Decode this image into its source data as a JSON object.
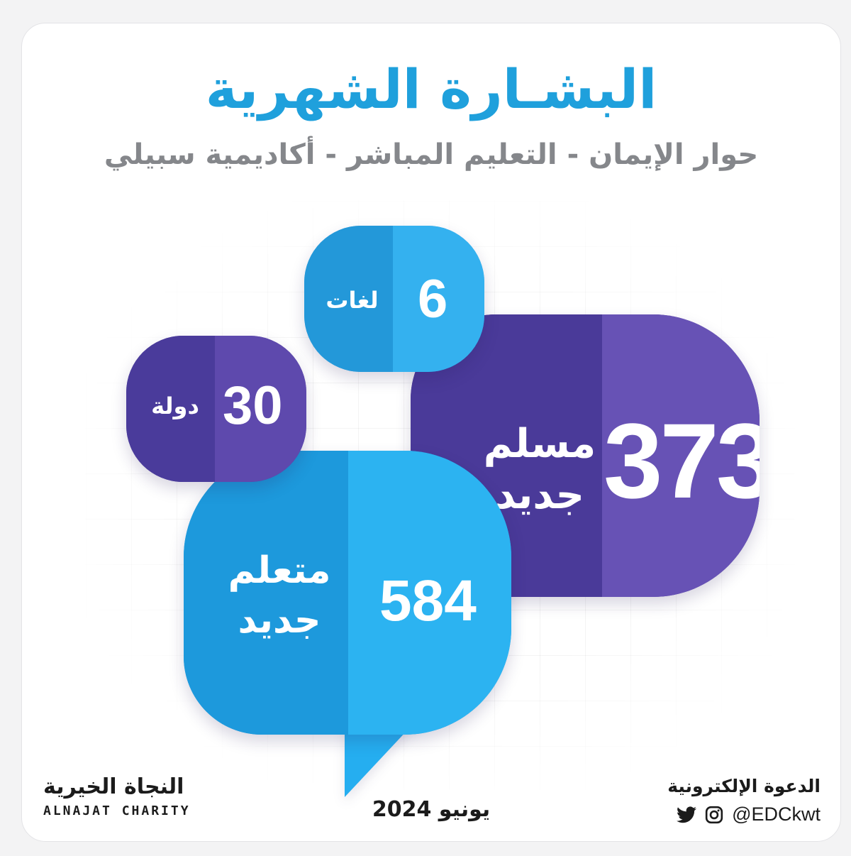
{
  "header": {
    "title": "البشـارة الشهرية",
    "subtitle": "حوار الإيمان - التعليم المباشر - أكاديمية سبيلي"
  },
  "stats": {
    "muslims": {
      "value": "373",
      "label_line1": "مسلم",
      "label_line2": "جديد"
    },
    "learners": {
      "value": "584",
      "label_line1": "متعلم",
      "label_line2": "جديد"
    },
    "countries": {
      "value": "30",
      "label": "دولة"
    },
    "languages": {
      "value": "6",
      "label": "لغات"
    }
  },
  "footer": {
    "org_ar": "النجاة الخيرية",
    "org_en": "ALNAJAT CHARITY",
    "date": "يونيو 2024",
    "partner_ar": "الدعوة الإلكترونية",
    "handle": "@EDCkwt"
  },
  "colors": {
    "title_blue": "#1fa0dc",
    "purple_dark": "#4b3b9c",
    "purple_light": "#6752b5",
    "blue_dark": "#1f9ee0",
    "blue_light": "#2fb6f2"
  },
  "icons": [
    "instagram-icon",
    "twitter-icon"
  ]
}
